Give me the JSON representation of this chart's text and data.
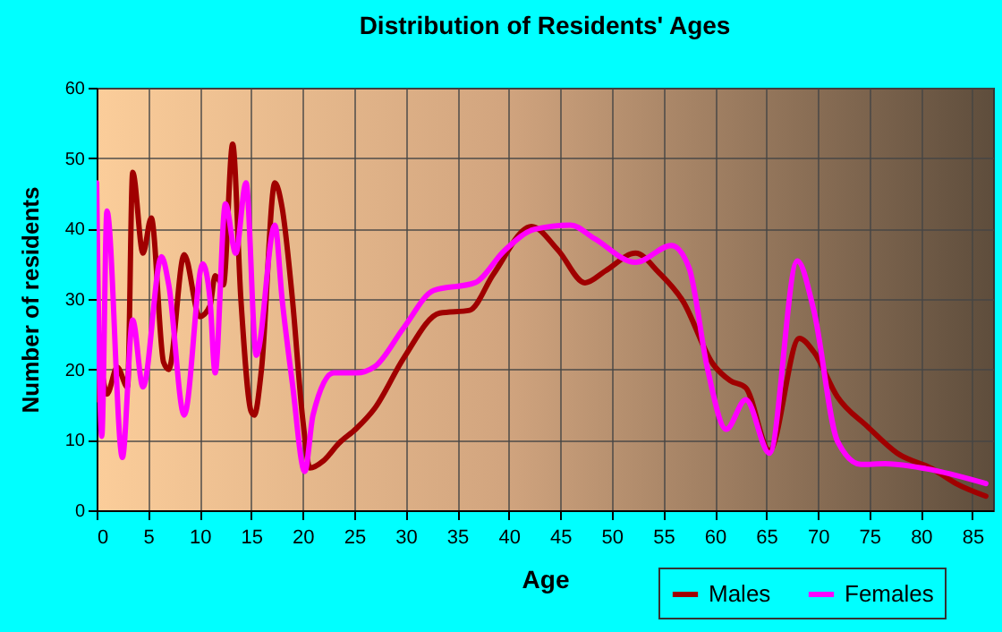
{
  "chart_data": {
    "type": "line",
    "title": "Distribution of Residents' Ages",
    "xlabel": "Age",
    "ylabel": "Number of residents",
    "xlim": [
      0,
      87
    ],
    "xticks": [
      0,
      5,
      10,
      15,
      20,
      25,
      30,
      35,
      40,
      45,
      50,
      55,
      60,
      65,
      70,
      75,
      80,
      85
    ],
    "ylim": [
      0,
      60
    ],
    "yticks": [
      0,
      10,
      20,
      30,
      40,
      50,
      60
    ],
    "grid": true,
    "legend": "bottom right",
    "marker": "none",
    "line_style": "solid",
    "series": [
      {
        "name": "Males",
        "color": "#a00000",
        "x": [
          0,
          0.3,
          1,
          2,
          3,
          3.5,
          4.5,
          5.3,
          6.5,
          7,
          8.5,
          10,
          11,
          11.5,
          12.3,
          13.2,
          14,
          15,
          15.3,
          16,
          17.3,
          18,
          19,
          20,
          20.7,
          22,
          23.5,
          25.2,
          27,
          29.8,
          33.3,
          36.2,
          38.5,
          42.2,
          44.8,
          47.4,
          49.4,
          52.3,
          54.6,
          56.9,
          59.8,
          61.5,
          63,
          65.3,
          68.2,
          69.6,
          71.9,
          74.8,
          77.7,
          81.1,
          83.4,
          86.3
        ],
        "values": [
          15.7,
          20.5,
          16.5,
          20.3,
          17.5,
          48,
          36.5,
          41.5,
          21,
          20,
          36.3,
          27.5,
          29,
          33.3,
          32,
          52,
          30,
          14,
          13.5,
          20,
          46.5,
          43,
          30,
          13,
          6,
          7,
          9.5,
          11.6,
          14.5,
          21.6,
          28,
          28.4,
          33.5,
          40.3,
          36.9,
          32.3,
          34,
          36.5,
          33.7,
          29.7,
          20.8,
          18.4,
          17.4,
          8.5,
          24.4,
          22.5,
          16.1,
          11.9,
          8.1,
          5.9,
          3.8,
          2
        ]
      },
      {
        "name": "Females",
        "color": "#ff00ff",
        "x": [
          0,
          0.5,
          1,
          2.5,
          3.5,
          4.5,
          6.3,
          7,
          8.5,
          10.3,
          11,
          11.5,
          12.5,
          13.5,
          14.5,
          15.5,
          17.3,
          18,
          19,
          20.2,
          21,
          23,
          25.2,
          27,
          29.8,
          32.7,
          36.7,
          39.6,
          42.5,
          46,
          48.3,
          52.3,
          55.8,
          57.5,
          59.3,
          61.1,
          63,
          65.3,
          68,
          69.6,
          71.9,
          74.2,
          76.5,
          80.5,
          86.3
        ],
        "values": [
          46.5,
          10.5,
          42.5,
          7.5,
          27,
          17.5,
          36,
          32,
          13.5,
          35,
          30,
          19.5,
          43.5,
          36.5,
          46.5,
          22,
          40.5,
          30,
          18,
          5.5,
          13.5,
          19.5,
          19.5,
          20.4,
          25.9,
          31.2,
          32.3,
          36.9,
          39.9,
          40.5,
          38.6,
          35.2,
          37.6,
          34.4,
          20,
          11.5,
          15.7,
          8.1,
          35.4,
          28.4,
          9.8,
          6.5,
          6.6,
          5.9,
          3.8
        ]
      }
    ]
  }
}
